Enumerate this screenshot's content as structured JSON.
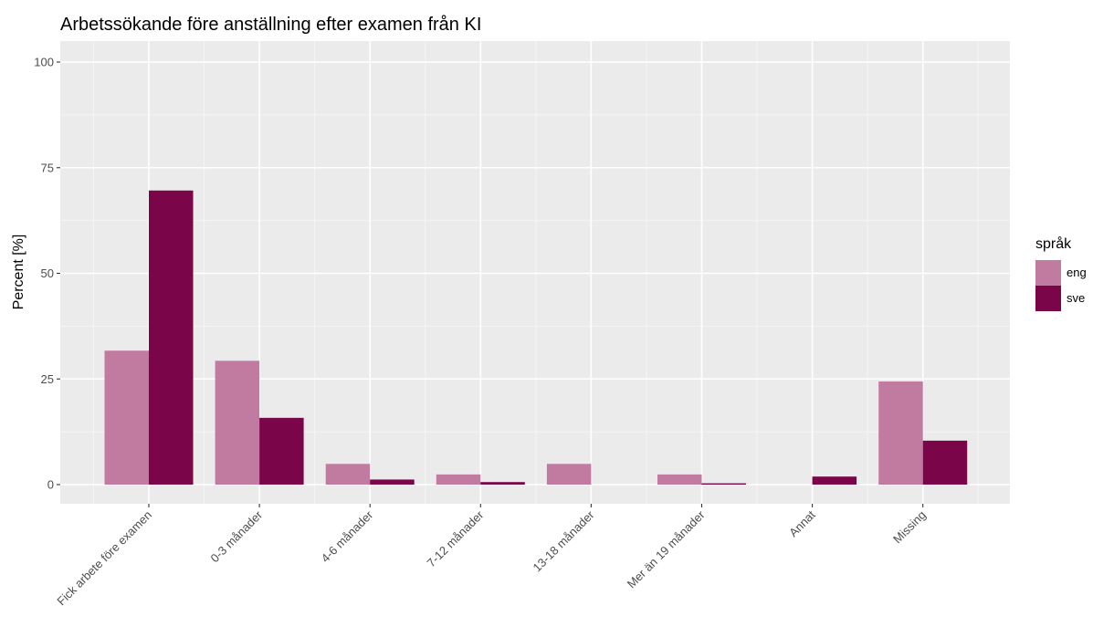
{
  "chart_data": {
    "type": "bar",
    "title": "Arbetssökande före anställning efter examen från KI",
    "xlabel": "",
    "ylabel": "Percent [%]",
    "ylim": [
      0,
      100
    ],
    "yticks": [
      0,
      25,
      50,
      75,
      100
    ],
    "grid": true,
    "legend": {
      "title": "språk",
      "position": "right"
    },
    "categories": [
      "Fick arbete före examen",
      "0-3 månader",
      "4-6 månader",
      "7-12 månader",
      "13-18 månader",
      "Mer än 19 månader",
      "Annat",
      "Missing"
    ],
    "series": [
      {
        "name": "eng",
        "color": "#c27ba0",
        "values": [
          31.7,
          29.3,
          4.9,
          2.4,
          4.9,
          2.4,
          0,
          24.4
        ]
      },
      {
        "name": "sve",
        "color": "#7a0549",
        "values": [
          69.6,
          15.8,
          1.2,
          0.6,
          0,
          0.3,
          1.9,
          10.4
        ]
      }
    ]
  }
}
